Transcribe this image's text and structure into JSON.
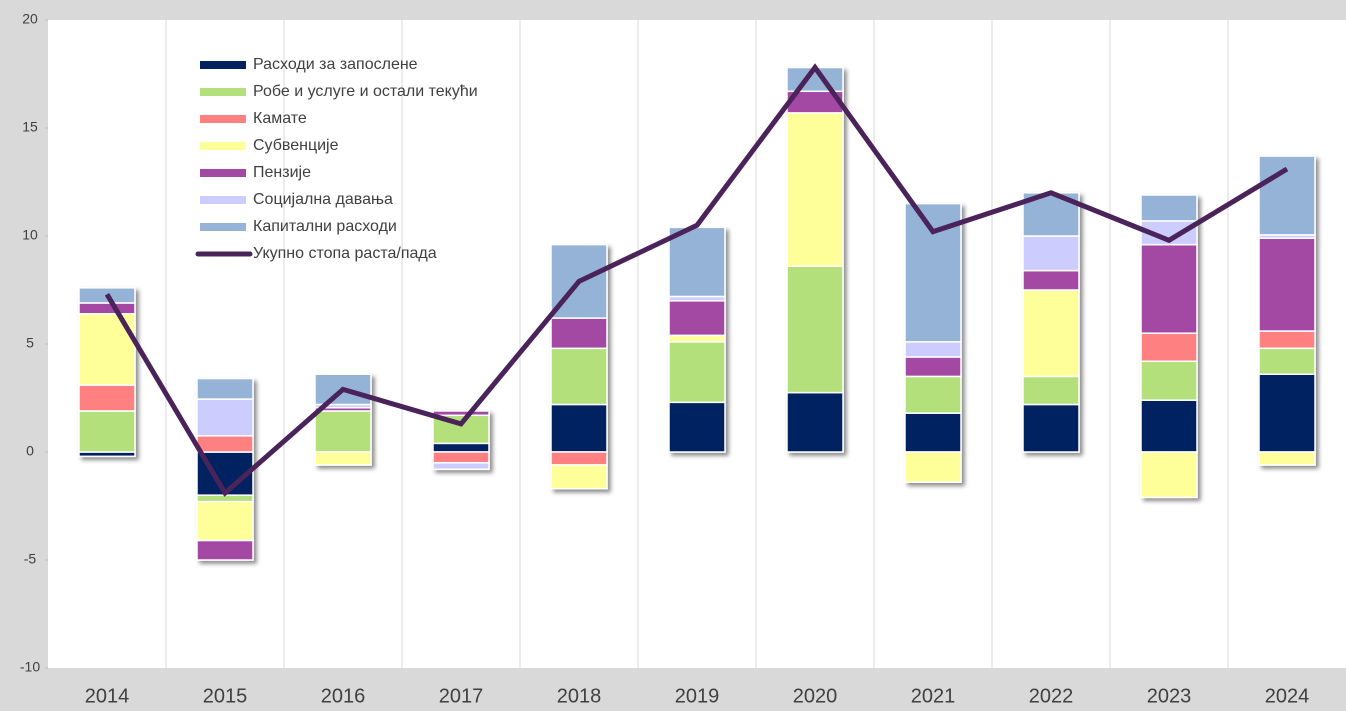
{
  "chart_data": {
    "type": "bar",
    "categories": [
      "2014",
      "2015",
      "2016",
      "2017",
      "2018",
      "2019",
      "2020",
      "2021",
      "2022",
      "2023",
      "2024"
    ],
    "series": [
      {
        "name": "Расходи за запослене",
        "color": "#002060",
        "values": [
          -0.2,
          -2.0,
          0,
          0.4,
          2.2,
          2.3,
          2.75,
          1.8,
          2.2,
          2.4,
          3.6
        ]
      },
      {
        "name": "Робе и услуге и остали текући",
        "color": "#b3e07a",
        "values": [
          1.9,
          -0.3,
          1.9,
          1.3,
          2.6,
          2.8,
          5.85,
          1.7,
          1.3,
          1.8,
          1.2
        ]
      },
      {
        "name": "Камате",
        "color": "#ff8080",
        "values": [
          1.2,
          0.75,
          0,
          -0.5,
          -0.6,
          0,
          0,
          0,
          0,
          1.3,
          0.8
        ]
      },
      {
        "name": "Субвенције",
        "color": "#ffff99",
        "values": [
          3.3,
          -1.8,
          -0.6,
          0,
          -1.1,
          0.3,
          7.1,
          -1.4,
          4.0,
          -2.1,
          -0.6
        ]
      },
      {
        "name": "Пензије",
        "color": "#a349a4",
        "values": [
          0.5,
          -0.9,
          0.15,
          0.2,
          1.4,
          1.6,
          1.0,
          0.9,
          0.9,
          4.1,
          4.3
        ]
      },
      {
        "name": "Социјална давања",
        "color": "#ccccff",
        "values": [
          0,
          1.7,
          0.15,
          -0.3,
          0,
          0.2,
          0,
          0.7,
          1.6,
          1.1,
          0.15
        ]
      },
      {
        "name": "Капитални расходи",
        "color": "#95b3d7",
        "values": [
          0.7,
          0.95,
          1.4,
          0,
          3.4,
          3.2,
          1.1,
          6.4,
          2.0,
          1.2,
          3.65
        ]
      },
      {
        "name": "Укупно стопа раста/пада",
        "color": "#4a235a",
        "type": "line",
        "values": [
          7.3,
          -1.9,
          2.9,
          1.3,
          7.9,
          10.5,
          17.8,
          10.2,
          12.0,
          9.8,
          13.1
        ]
      }
    ],
    "ylim": [
      -10,
      20
    ],
    "yticks": [
      -10,
      -5,
      0,
      5,
      10,
      15,
      20
    ],
    "grid": true,
    "stacked": true
  }
}
